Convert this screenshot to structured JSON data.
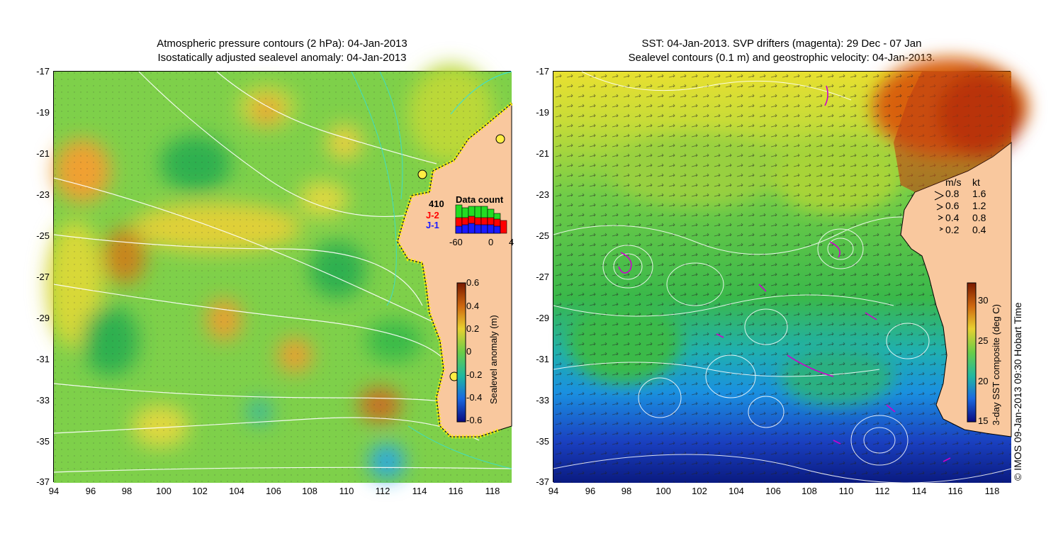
{
  "left_panel": {
    "title_line1": "Atmospheric pressure contours (2 hPa): 04-Jan-2013",
    "title_line2": "Isostatically adjusted sealevel anomaly: 04-Jan-2013",
    "lat_ticks": [
      "-17",
      "-19",
      "-21",
      "-23",
      "-25",
      "-27",
      "-29",
      "-31",
      "-33",
      "-35",
      "-37"
    ],
    "lon_ticks": [
      "94",
      "96",
      "98",
      "100",
      "102",
      "104",
      "106",
      "108",
      "110",
      "112",
      "114",
      "116",
      "118"
    ],
    "colorbar": {
      "label": "Sealevel anomaly (m)",
      "ticks": [
        "0.6",
        "0.4",
        "0.2",
        "0",
        "-0.2",
        "-0.4",
        "-0.6"
      ]
    },
    "data_count": {
      "title": "Data count",
      "total": "410",
      "series_j2": "J-2",
      "series_j1": "J-1",
      "axis_ticks": [
        "-60",
        "0",
        "4"
      ],
      "colors": {
        "j2": "#ff0000",
        "j1": "#1a1aff",
        "other": "#22dd22"
      }
    }
  },
  "right_panel": {
    "title_line1": "SST: 04-Jan-2013. SVP drifters (magenta): 29 Dec - 07 Jan",
    "title_line2": "Sealevel contours (0.1 m) and geostrophic velocity: 04-Jan-2013.",
    "lat_ticks": [
      "-17",
      "-19",
      "-21",
      "-23",
      "-25",
      "-27",
      "-29",
      "-31",
      "-33",
      "-35",
      "-37"
    ],
    "lon_ticks": [
      "94",
      "96",
      "98",
      "100",
      "102",
      "104",
      "106",
      "108",
      "110",
      "112",
      "114",
      "116",
      "118"
    ],
    "colorbar": {
      "label": "3-day SST composite (deg C)",
      "ticks": [
        "30",
        "25",
        "20",
        "15"
      ]
    },
    "velocity_legend": {
      "header_ms": "m/s",
      "header_kt": "kt",
      "rows": [
        {
          "ms": "0.8",
          "kt": "1.6"
        },
        {
          "ms": "0.6",
          "kt": "1.2"
        },
        {
          "ms": "0.4",
          "kt": "0.8"
        },
        {
          "ms": "0.2",
          "kt": "0.4"
        }
      ]
    },
    "credit": "© IMOS 09-Jan-2013 09:30 Hobart Time"
  },
  "colors": {
    "land": "#f9c89e",
    "drifter": "#cc00cc",
    "contour": "#ffffff"
  }
}
